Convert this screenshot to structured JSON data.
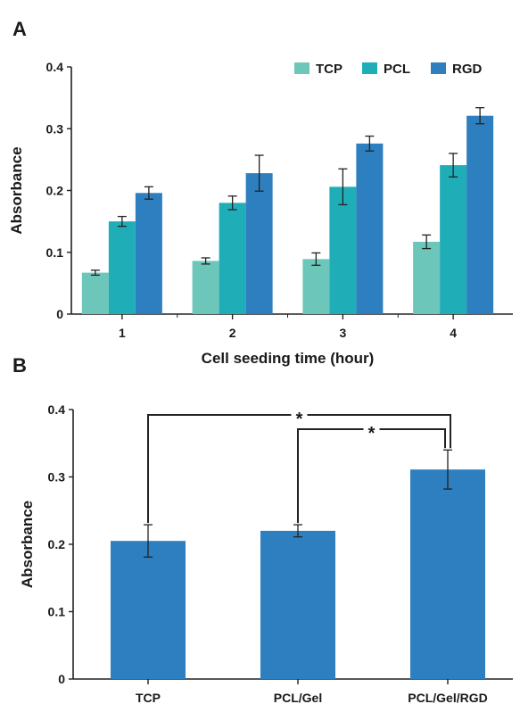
{
  "chart_data": [
    {
      "panel_label": "A",
      "type": "bar",
      "xlabel": "Cell seeding time (hour)",
      "ylabel": "Absorbance",
      "categories": [
        "1",
        "2",
        "3",
        "4"
      ],
      "ylim": [
        0,
        0.4
      ],
      "yticks": [
        0,
        0.1,
        0.2,
        0.3,
        0.4
      ],
      "ytick_labels": [
        "0",
        "0.1",
        "0.2",
        "0.3",
        "0.4"
      ],
      "legend_position": "top-right",
      "grid": false,
      "series": [
        {
          "name": "TCP",
          "color": "#6cc6b9",
          "values": [
            0.067,
            0.086,
            0.089,
            0.117
          ],
          "errors": [
            0.004,
            0.005,
            0.01,
            0.011
          ]
        },
        {
          "name": "PCL",
          "color": "#1faeb8",
          "values": [
            0.15,
            0.18,
            0.206,
            0.241
          ],
          "errors": [
            0.008,
            0.011,
            0.029,
            0.019
          ]
        },
        {
          "name": "RGD",
          "color": "#2e7fbf",
          "values": [
            0.196,
            0.228,
            0.276,
            0.321
          ],
          "errors": [
            0.01,
            0.029,
            0.012,
            0.013
          ]
        }
      ]
    },
    {
      "panel_label": "B",
      "type": "bar",
      "xlabel": "",
      "ylabel": "Absorbance",
      "categories": [
        "TCP",
        "PCL/Gel",
        "PCL/Gel/RGD"
      ],
      "ylim": [
        0,
        0.4
      ],
      "yticks": [
        0,
        0.1,
        0.2,
        0.3,
        0.4
      ],
      "ytick_labels": [
        "0",
        "0.1",
        "0.2",
        "0.3",
        "0.4"
      ],
      "grid": false,
      "series": [
        {
          "color": "#2e7fbf",
          "values": [
            0.205,
            0.22,
            0.311
          ],
          "errors": [
            0.024,
            0.009,
            0.029
          ]
        }
      ],
      "significance": [
        {
          "from": 0,
          "to": 2,
          "label": "*"
        },
        {
          "from": 1,
          "to": 2,
          "label": "*"
        }
      ]
    }
  ]
}
